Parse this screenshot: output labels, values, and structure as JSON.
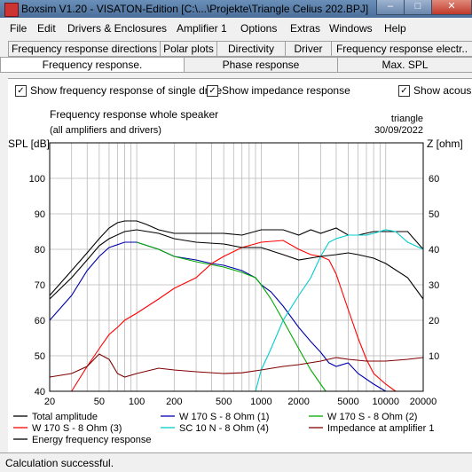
{
  "window": {
    "title": "Boxsim V1.20 - VISATON-Edition [C:\\...\\Projekte\\Triangle Celius 202.BPJ]",
    "minimize_glyph": "–",
    "maximize_glyph": "□",
    "close_glyph": "✕"
  },
  "menu": [
    "File",
    "Edit",
    "Drivers & Enclosures",
    "Amplifier 1",
    "Options",
    "Extras",
    "Windows",
    "Help"
  ],
  "tabs_row1": [
    "Frequency response directions",
    "Polar plots",
    "Directivity",
    "Driver",
    "Frequency response electr.."
  ],
  "tabs_row2": [
    "Frequency response.",
    "Phase response",
    "Max. SPL"
  ],
  "options": {
    "show_single_drive": "Show frequency response of single drive",
    "show_impedance": "Show impedance response",
    "show_acoustic": "Show acous",
    "checkmark": "✓"
  },
  "plot": {
    "title_line1": "Frequency response whole speaker",
    "title_line2": "(all amplifiers and drivers)",
    "project_name": "triangle",
    "date": "30/09/2022",
    "left_axis_label": "SPL [dB]",
    "right_axis_label": "Z [ohm]"
  },
  "status": {
    "text": "Calculation successful."
  },
  "chart_data": {
    "type": "line",
    "x_scale": "log",
    "xlim": [
      20,
      20000
    ],
    "x_ticks": [
      20,
      50,
      100,
      200,
      500,
      1000,
      2000,
      5000,
      10000,
      20000
    ],
    "x_tick_labels": [
      "20",
      "50",
      "100",
      "200",
      "500",
      "1000",
      "2000",
      "5000",
      "10000",
      "20000"
    ],
    "ylim": [
      40,
      110
    ],
    "y_ticks": [
      40,
      50,
      60,
      70,
      80,
      90,
      100
    ],
    "y2lim": [
      0,
      70
    ],
    "y2_ticks": [
      10,
      20,
      30,
      40,
      50,
      60
    ],
    "ylabel": "SPL [dB]",
    "y2label": "Z [ohm]",
    "grid": true,
    "legend_position": "bottom",
    "series": [
      {
        "name": "Total amplitude",
        "color": "#000000",
        "axis": "left",
        "points": [
          [
            20,
            67
          ],
          [
            30,
            74
          ],
          [
            40,
            79
          ],
          [
            50,
            83
          ],
          [
            60,
            86
          ],
          [
            70,
            87.5
          ],
          [
            80,
            88
          ],
          [
            100,
            88
          ],
          [
            120,
            87
          ],
          [
            150,
            85.5
          ],
          [
            200,
            84.5
          ],
          [
            300,
            84.5
          ],
          [
            400,
            84.5
          ],
          [
            500,
            84.5
          ],
          [
            700,
            84
          ],
          [
            1000,
            85.5
          ],
          [
            1500,
            85.5
          ],
          [
            2000,
            84
          ],
          [
            2500,
            85.5
          ],
          [
            3000,
            84.5
          ],
          [
            4000,
            86
          ],
          [
            5000,
            84
          ],
          [
            6000,
            84
          ],
          [
            8000,
            85
          ],
          [
            10000,
            85
          ],
          [
            15000,
            85
          ],
          [
            20000,
            80
          ]
        ]
      },
      {
        "name": "W 170 S - 8 Ohm (1)",
        "color": "#0000aa",
        "axis": "left",
        "points": [
          [
            20,
            60
          ],
          [
            30,
            67
          ],
          [
            40,
            74
          ],
          [
            50,
            78
          ],
          [
            60,
            80.5
          ],
          [
            80,
            82
          ],
          [
            100,
            82
          ],
          [
            150,
            80
          ],
          [
            200,
            78
          ],
          [
            300,
            77
          ],
          [
            400,
            76
          ],
          [
            500,
            75.5
          ],
          [
            700,
            74
          ],
          [
            900,
            72
          ],
          [
            1000,
            70
          ],
          [
            1200,
            68
          ],
          [
            1500,
            64
          ],
          [
            2000,
            58
          ],
          [
            2500,
            54
          ],
          [
            3000,
            51
          ],
          [
            3500,
            48
          ],
          [
            4000,
            47
          ],
          [
            5000,
            48
          ],
          [
            6000,
            45
          ],
          [
            8000,
            42
          ],
          [
            10000,
            40
          ]
        ]
      },
      {
        "name": "W 170 S - 8 Ohm (2)",
        "color": "#00aa00",
        "axis": "left",
        "points": [
          [
            100,
            82
          ],
          [
            150,
            80
          ],
          [
            200,
            78
          ],
          [
            300,
            76.5
          ],
          [
            500,
            75
          ],
          [
            700,
            73.5
          ],
          [
            900,
            72
          ],
          [
            1000,
            70
          ],
          [
            1200,
            66
          ],
          [
            1500,
            60
          ],
          [
            2000,
            52
          ],
          [
            2500,
            46
          ],
          [
            3000,
            42
          ],
          [
            3300,
            40
          ]
        ]
      },
      {
        "name": "W 170 S - 8 Ohm (3)",
        "color": "#ff0000",
        "axis": "left",
        "points": [
          [
            30,
            40
          ],
          [
            40,
            47
          ],
          [
            50,
            52
          ],
          [
            60,
            56
          ],
          [
            70,
            58
          ],
          [
            80,
            60
          ],
          [
            100,
            62
          ],
          [
            150,
            66
          ],
          [
            200,
            69
          ],
          [
            300,
            72
          ],
          [
            400,
            76
          ],
          [
            500,
            78
          ],
          [
            700,
            80.5
          ],
          [
            1000,
            82
          ],
          [
            1500,
            82.5
          ],
          [
            2000,
            80
          ],
          [
            2500,
            78.5
          ],
          [
            3000,
            78
          ],
          [
            3500,
            77
          ],
          [
            4000,
            73
          ],
          [
            5000,
            63
          ],
          [
            6000,
            55
          ],
          [
            7000,
            49
          ],
          [
            8000,
            45
          ],
          [
            10000,
            42
          ],
          [
            12000,
            40
          ]
        ]
      },
      {
        "name": "SC 10 N - 8 Ohm (4)",
        "color": "#00cccc",
        "axis": "left",
        "points": [
          [
            20,
            40
          ],
          [
            900,
            40
          ],
          [
            1000,
            46
          ],
          [
            1200,
            52
          ],
          [
            1500,
            60
          ],
          [
            2000,
            67
          ],
          [
            2500,
            72
          ],
          [
            3000,
            78
          ],
          [
            3500,
            82
          ],
          [
            4000,
            83
          ],
          [
            5000,
            84
          ],
          [
            6000,
            84
          ],
          [
            7000,
            84
          ],
          [
            8000,
            84.5
          ],
          [
            10000,
            85.5
          ],
          [
            12000,
            85
          ],
          [
            15000,
            82
          ],
          [
            20000,
            80
          ]
        ]
      },
      {
        "name": "Impedance at amplifier 1",
        "color": "#800000",
        "axis": "right",
        "points": [
          [
            20,
            4
          ],
          [
            30,
            5
          ],
          [
            40,
            7
          ],
          [
            50,
            10.5
          ],
          [
            60,
            9
          ],
          [
            70,
            5
          ],
          [
            80,
            4
          ],
          [
            100,
            5
          ],
          [
            150,
            6.5
          ],
          [
            200,
            6
          ],
          [
            300,
            5.5
          ],
          [
            500,
            5
          ],
          [
            700,
            5.2
          ],
          [
            1000,
            6
          ],
          [
            1500,
            7
          ],
          [
            2000,
            7.5
          ],
          [
            3000,
            8.5
          ],
          [
            4000,
            9.5
          ],
          [
            5000,
            9
          ],
          [
            7000,
            8.5
          ],
          [
            10000,
            8.5
          ],
          [
            15000,
            9
          ],
          [
            20000,
            9.5
          ]
        ]
      },
      {
        "name": "Energy frequency response",
        "color": "#000000",
        "axis": "left",
        "points": [
          [
            20,
            66
          ],
          [
            30,
            72
          ],
          [
            40,
            77
          ],
          [
            50,
            81
          ],
          [
            60,
            83
          ],
          [
            80,
            85
          ],
          [
            100,
            85.5
          ],
          [
            150,
            84.5
          ],
          [
            200,
            83
          ],
          [
            300,
            82
          ],
          [
            500,
            81.5
          ],
          [
            700,
            80.5
          ],
          [
            1000,
            80.5
          ],
          [
            1500,
            78.5
          ],
          [
            2000,
            77
          ],
          [
            3000,
            78
          ],
          [
            4000,
            78.5
          ],
          [
            5000,
            79
          ],
          [
            6000,
            78.5
          ],
          [
            8000,
            77.5
          ],
          [
            10000,
            76
          ],
          [
            15000,
            72
          ],
          [
            20000,
            66
          ]
        ]
      }
    ]
  }
}
